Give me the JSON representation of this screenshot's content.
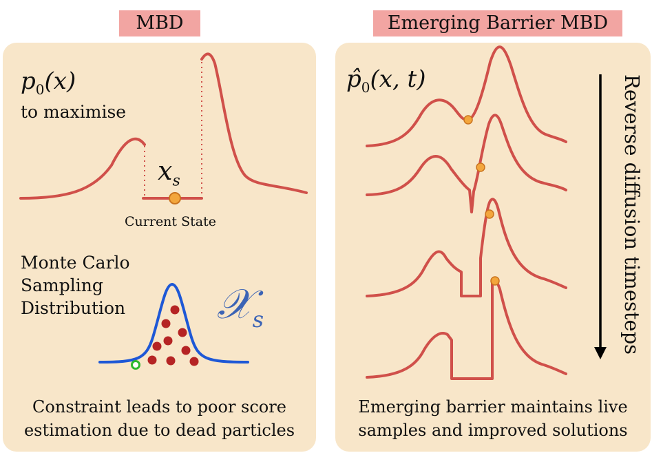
{
  "left_panel": {
    "title": "MBD",
    "objective_math": "p",
    "objective_sub": "0",
    "objective_arg": "(x)",
    "objective_text": "to maximise",
    "state_math": "x",
    "state_sub": "s",
    "state_label": "Current State",
    "sampling_label_lines": [
      "Monte Carlo",
      "Sampling",
      "Distribution"
    ],
    "sampling_math": "𝒳",
    "sampling_sub": "s",
    "caption_lines": [
      "Constraint leads to poor score",
      "estimation due to dead particles"
    ]
  },
  "right_panel": {
    "title": "Emerging Barrier MBD",
    "density_math": "p̂",
    "density_sub": "0",
    "density_arg": "(x, t)",
    "arrow_label": "Reverse diffusion timesteps",
    "caption_lines": [
      "Emerging barrier maintains live",
      "samples and improved solutions"
    ]
  },
  "colors": {
    "curve": "#d0504a",
    "gaussian": "#1e58d6",
    "particle": "#b52424",
    "live_particle": "#2db82d",
    "state_dot": "#f3a63c",
    "panel_bg": "#f8e6c9",
    "tag_bg": "#f2a5a2",
    "script_x": "#3b63b5"
  }
}
